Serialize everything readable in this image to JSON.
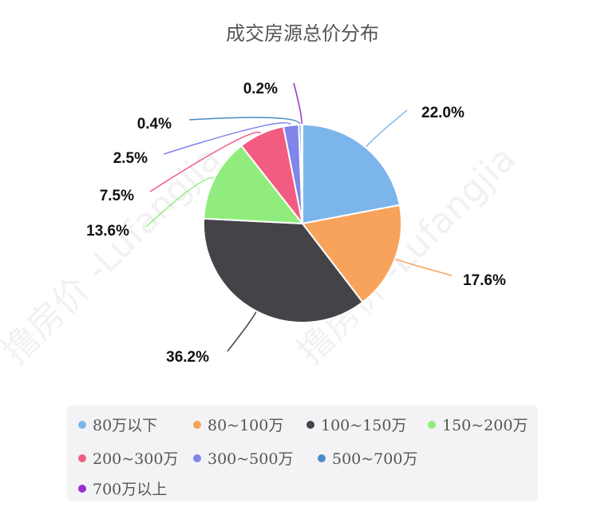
{
  "chart_data": {
    "type": "pie",
    "title": "成交房源总价分布",
    "categories": [
      "80万以下",
      "80~100万",
      "100~150万",
      "150~200万",
      "200~300万",
      "300~500万",
      "500~700万",
      "700万以上"
    ],
    "values": [
      22.0,
      17.6,
      36.2,
      13.6,
      7.5,
      2.5,
      0.4,
      0.2
    ],
    "value_labels": [
      "22.0%",
      "17.6%",
      "36.2%",
      "13.6%",
      "7.5%",
      "2.5%",
      "0.4%",
      "0.2%"
    ],
    "colors": [
      "#7cb5ec",
      "#f7a35c",
      "#434348",
      "#90ed7d",
      "#f15c80",
      "#8085e9",
      "#4a8bc6",
      "#9a2ecf"
    ],
    "legend_position": "bottom",
    "watermark": "撸房价 -Lufangjia"
  }
}
